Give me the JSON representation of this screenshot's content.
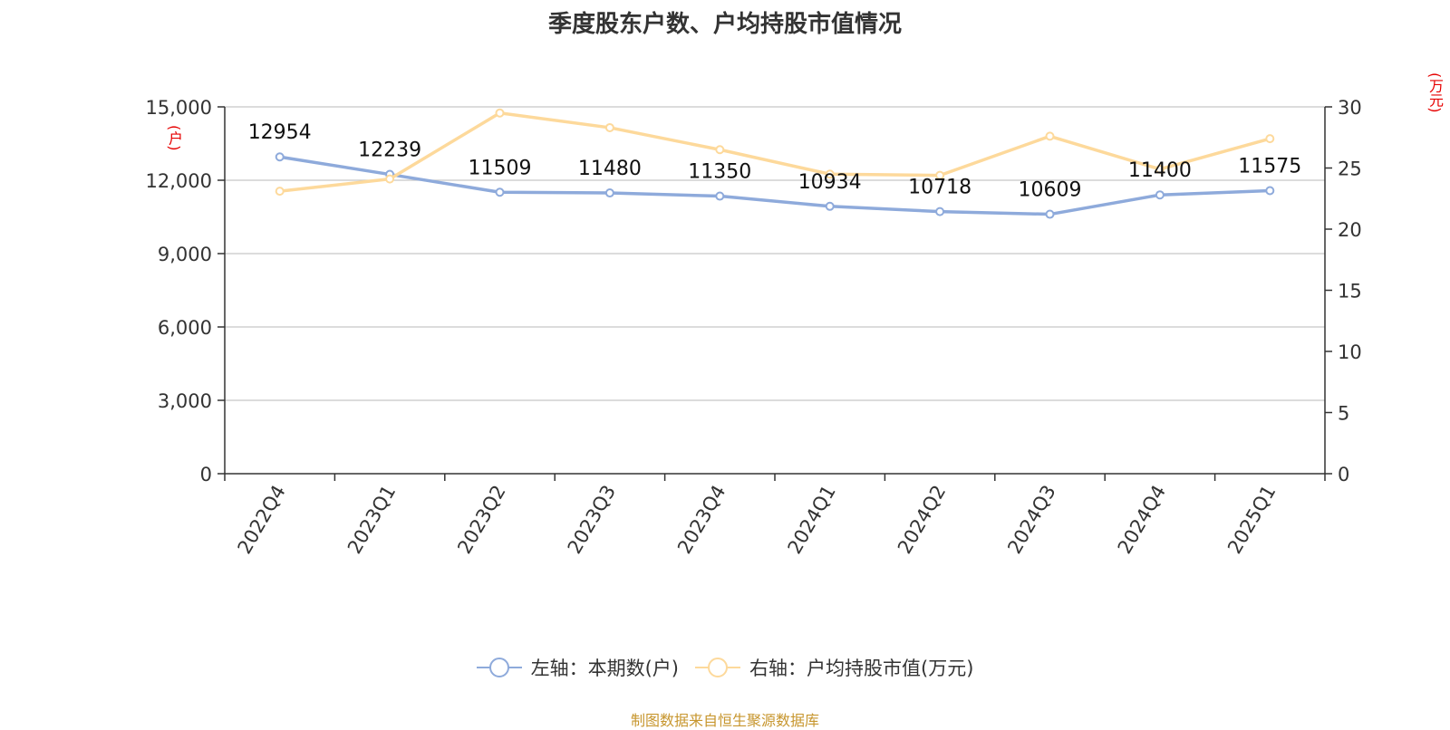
{
  "chart_data": {
    "type": "line",
    "title": "季度股东户数、户均持股市值情况",
    "categories": [
      "2022Q4",
      "2023Q1",
      "2023Q2",
      "2023Q3",
      "2023Q4",
      "2024Q1",
      "2024Q2",
      "2024Q3",
      "2024Q4",
      "2025Q1"
    ],
    "series": [
      {
        "name": "左轴：本期数(户)",
        "axis": "left",
        "color": "#8eaadb",
        "values": [
          12954,
          12239,
          11509,
          11480,
          11350,
          10934,
          10718,
          10609,
          11400,
          11575
        ],
        "data_labels": [
          "12954",
          "12239",
          "11509",
          "11480",
          "11350",
          "10934",
          "10718",
          "10609",
          "11400",
          "11575"
        ]
      },
      {
        "name": "右轴：户均持股市值(万元)",
        "axis": "right",
        "color": "#fdd99b",
        "values": [
          23.1,
          24.1,
          29.5,
          28.3,
          26.5,
          24.5,
          24.4,
          27.6,
          24.9,
          27.4
        ]
      }
    ],
    "y_left": {
      "unit": "(户)",
      "ylim": [
        0,
        15000
      ],
      "ticks": [
        0,
        3000,
        6000,
        9000,
        12000,
        15000
      ],
      "tick_labels": [
        "0",
        "3,000",
        "6,000",
        "9,000",
        "12,000",
        "15,000"
      ]
    },
    "y_right": {
      "unit": "(万元)",
      "ylim": [
        0,
        30
      ],
      "ticks": [
        0,
        5,
        10,
        15,
        20,
        25,
        30
      ],
      "tick_labels": [
        "0",
        "5",
        "10",
        "15",
        "20",
        "25",
        "30"
      ]
    },
    "grid": true,
    "legend_position": "bottom"
  },
  "source": "制图数据来自恒生聚源数据库"
}
